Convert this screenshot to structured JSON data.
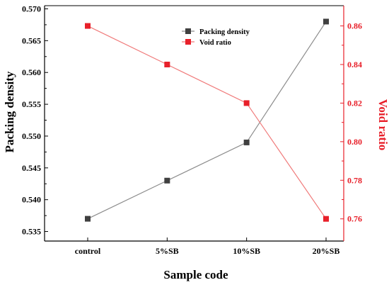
{
  "chart_data": {
    "type": "line",
    "categories": [
      "control",
      "5%SB",
      "10%SB",
      "20%SB"
    ],
    "xlabel": "Sample code",
    "ylabel_left": "Packing density",
    "ylabel_right": "Void ratio",
    "ylim_left": [
      0.5335,
      0.5705
    ],
    "ylim_right": [
      0.7485,
      0.8705
    ],
    "yticks_left": [
      "0.535",
      "0.540",
      "0.545",
      "0.550",
      "0.555",
      "0.560",
      "0.565",
      "0.570"
    ],
    "yticks_right": [
      "0.76",
      "0.78",
      "0.80",
      "0.82",
      "0.84",
      "0.86"
    ],
    "legend_position": "top-center",
    "grid": false,
    "series": [
      {
        "name": "Packing density",
        "axis": "left",
        "color": "#404040",
        "line_color": "#8c8c8c",
        "marker": "square",
        "values": [
          0.537,
          0.543,
          0.549,
          0.568
        ]
      },
      {
        "name": "Void ratio",
        "axis": "right",
        "color": "#e8202a",
        "line_color": "#f07a7a",
        "marker": "square",
        "values": [
          0.86,
          0.84,
          0.82,
          0.76
        ]
      }
    ]
  }
}
